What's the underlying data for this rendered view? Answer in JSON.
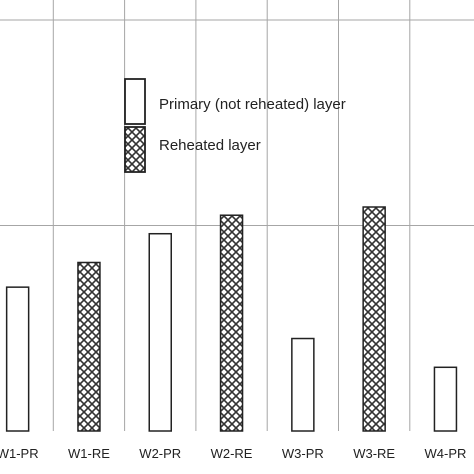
{
  "chart_data": {
    "type": "bar",
    "categories": [
      "W1-PR",
      "W1-RE",
      "W2-PR",
      "W2-RE",
      "W3-PR",
      "W3-RE",
      "W4-PR"
    ],
    "series": [
      {
        "name": "Primary (not reheated) layer",
        "pattern": "plain",
        "fill": "#ffffff",
        "values": [
          0.7,
          null,
          0.96,
          null,
          0.45,
          null,
          0.31
        ]
      },
      {
        "name": "Reheated layer",
        "pattern": "crosshatch",
        "fill": "#ffffff",
        "values": [
          null,
          0.82,
          null,
          1.05,
          null,
          1.09,
          null
        ]
      }
    ],
    "title": "",
    "xlabel": "",
    "ylabel": "",
    "ylim": [
      0,
      2
    ],
    "y_gridlines": [
      1,
      2
    ],
    "x_gridlines": "between-categories",
    "legend_position": "upper-center",
    "colors": {
      "bar_stroke": "#222222",
      "hatch": "#333333",
      "grid": "#a6a6a6"
    }
  }
}
